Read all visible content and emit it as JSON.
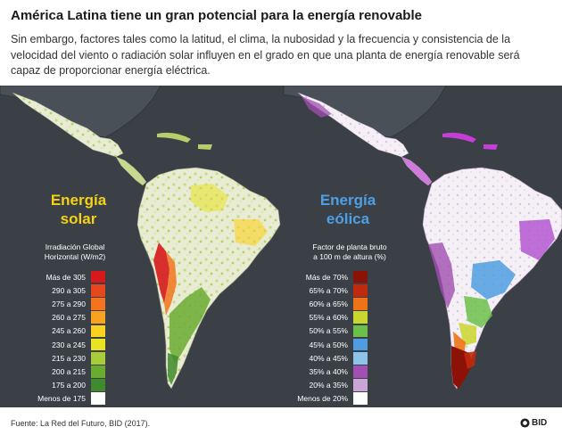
{
  "header": {
    "title": "América Latina tiene un gran potencial para la energía renovable",
    "subtitle": "Sin embargo, factores tales como la latitud, el clima, la nubosidad y la frecuencia y consistencia de la velocidad del viento o radiación solar influyen en el grado en que una planta de energía renovable será capaz de proporcionar energía eléctrica."
  },
  "solar": {
    "title_line1": "Energía",
    "title_line2": "solar",
    "legend_title_line1": "Irradiación Global",
    "legend_title_line2": "Horizontal (W/m2)",
    "legend": [
      {
        "label": "Más de 305",
        "color": "#d7191c"
      },
      {
        "label": "290 a 305",
        "color": "#e8461c"
      },
      {
        "label": "275 a 290",
        "color": "#f3741d"
      },
      {
        "label": "260 a 275",
        "color": "#f9a21e"
      },
      {
        "label": "245 a 260",
        "color": "#fdd21f"
      },
      {
        "label": "230 a 245",
        "color": "#e8e424"
      },
      {
        "label": "215 a 230",
        "color": "#a9cc3a"
      },
      {
        "label": "200 a 215",
        "color": "#6aab32"
      },
      {
        "label": "175 a 200",
        "color": "#3f8a2c"
      },
      {
        "label": "Menos de 175",
        "color": "#ffffff"
      }
    ]
  },
  "wind": {
    "title_line1": "Energía",
    "title_line2": "eólica",
    "legend_title_line1": "Factor de planta bruto",
    "legend_title_line2": "a 100 m de altura (%)",
    "legend": [
      {
        "label": "Más de 70%",
        "color": "#8c1207"
      },
      {
        "label": "65% a 70%",
        "color": "#c02a0c"
      },
      {
        "label": "60% a 65%",
        "color": "#ee7316"
      },
      {
        "label": "55% a 60%",
        "color": "#c9d62d"
      },
      {
        "label": "50% a 55%",
        "color": "#6cc04a"
      },
      {
        "label": "45% a 50%",
        "color": "#4e9de0"
      },
      {
        "label": "40% a 45%",
        "color": "#8cc4ea"
      },
      {
        "label": "35% a 40%",
        "color": "#a14fb0"
      },
      {
        "label": "20% a 35%",
        "color": "#c9a5d6"
      },
      {
        "label": "Menos de 20%",
        "color": "#ffffff"
      }
    ]
  },
  "footer": {
    "source": "Fuente: La Red del Futuro, BID (2017).",
    "logo_text": "BID"
  }
}
